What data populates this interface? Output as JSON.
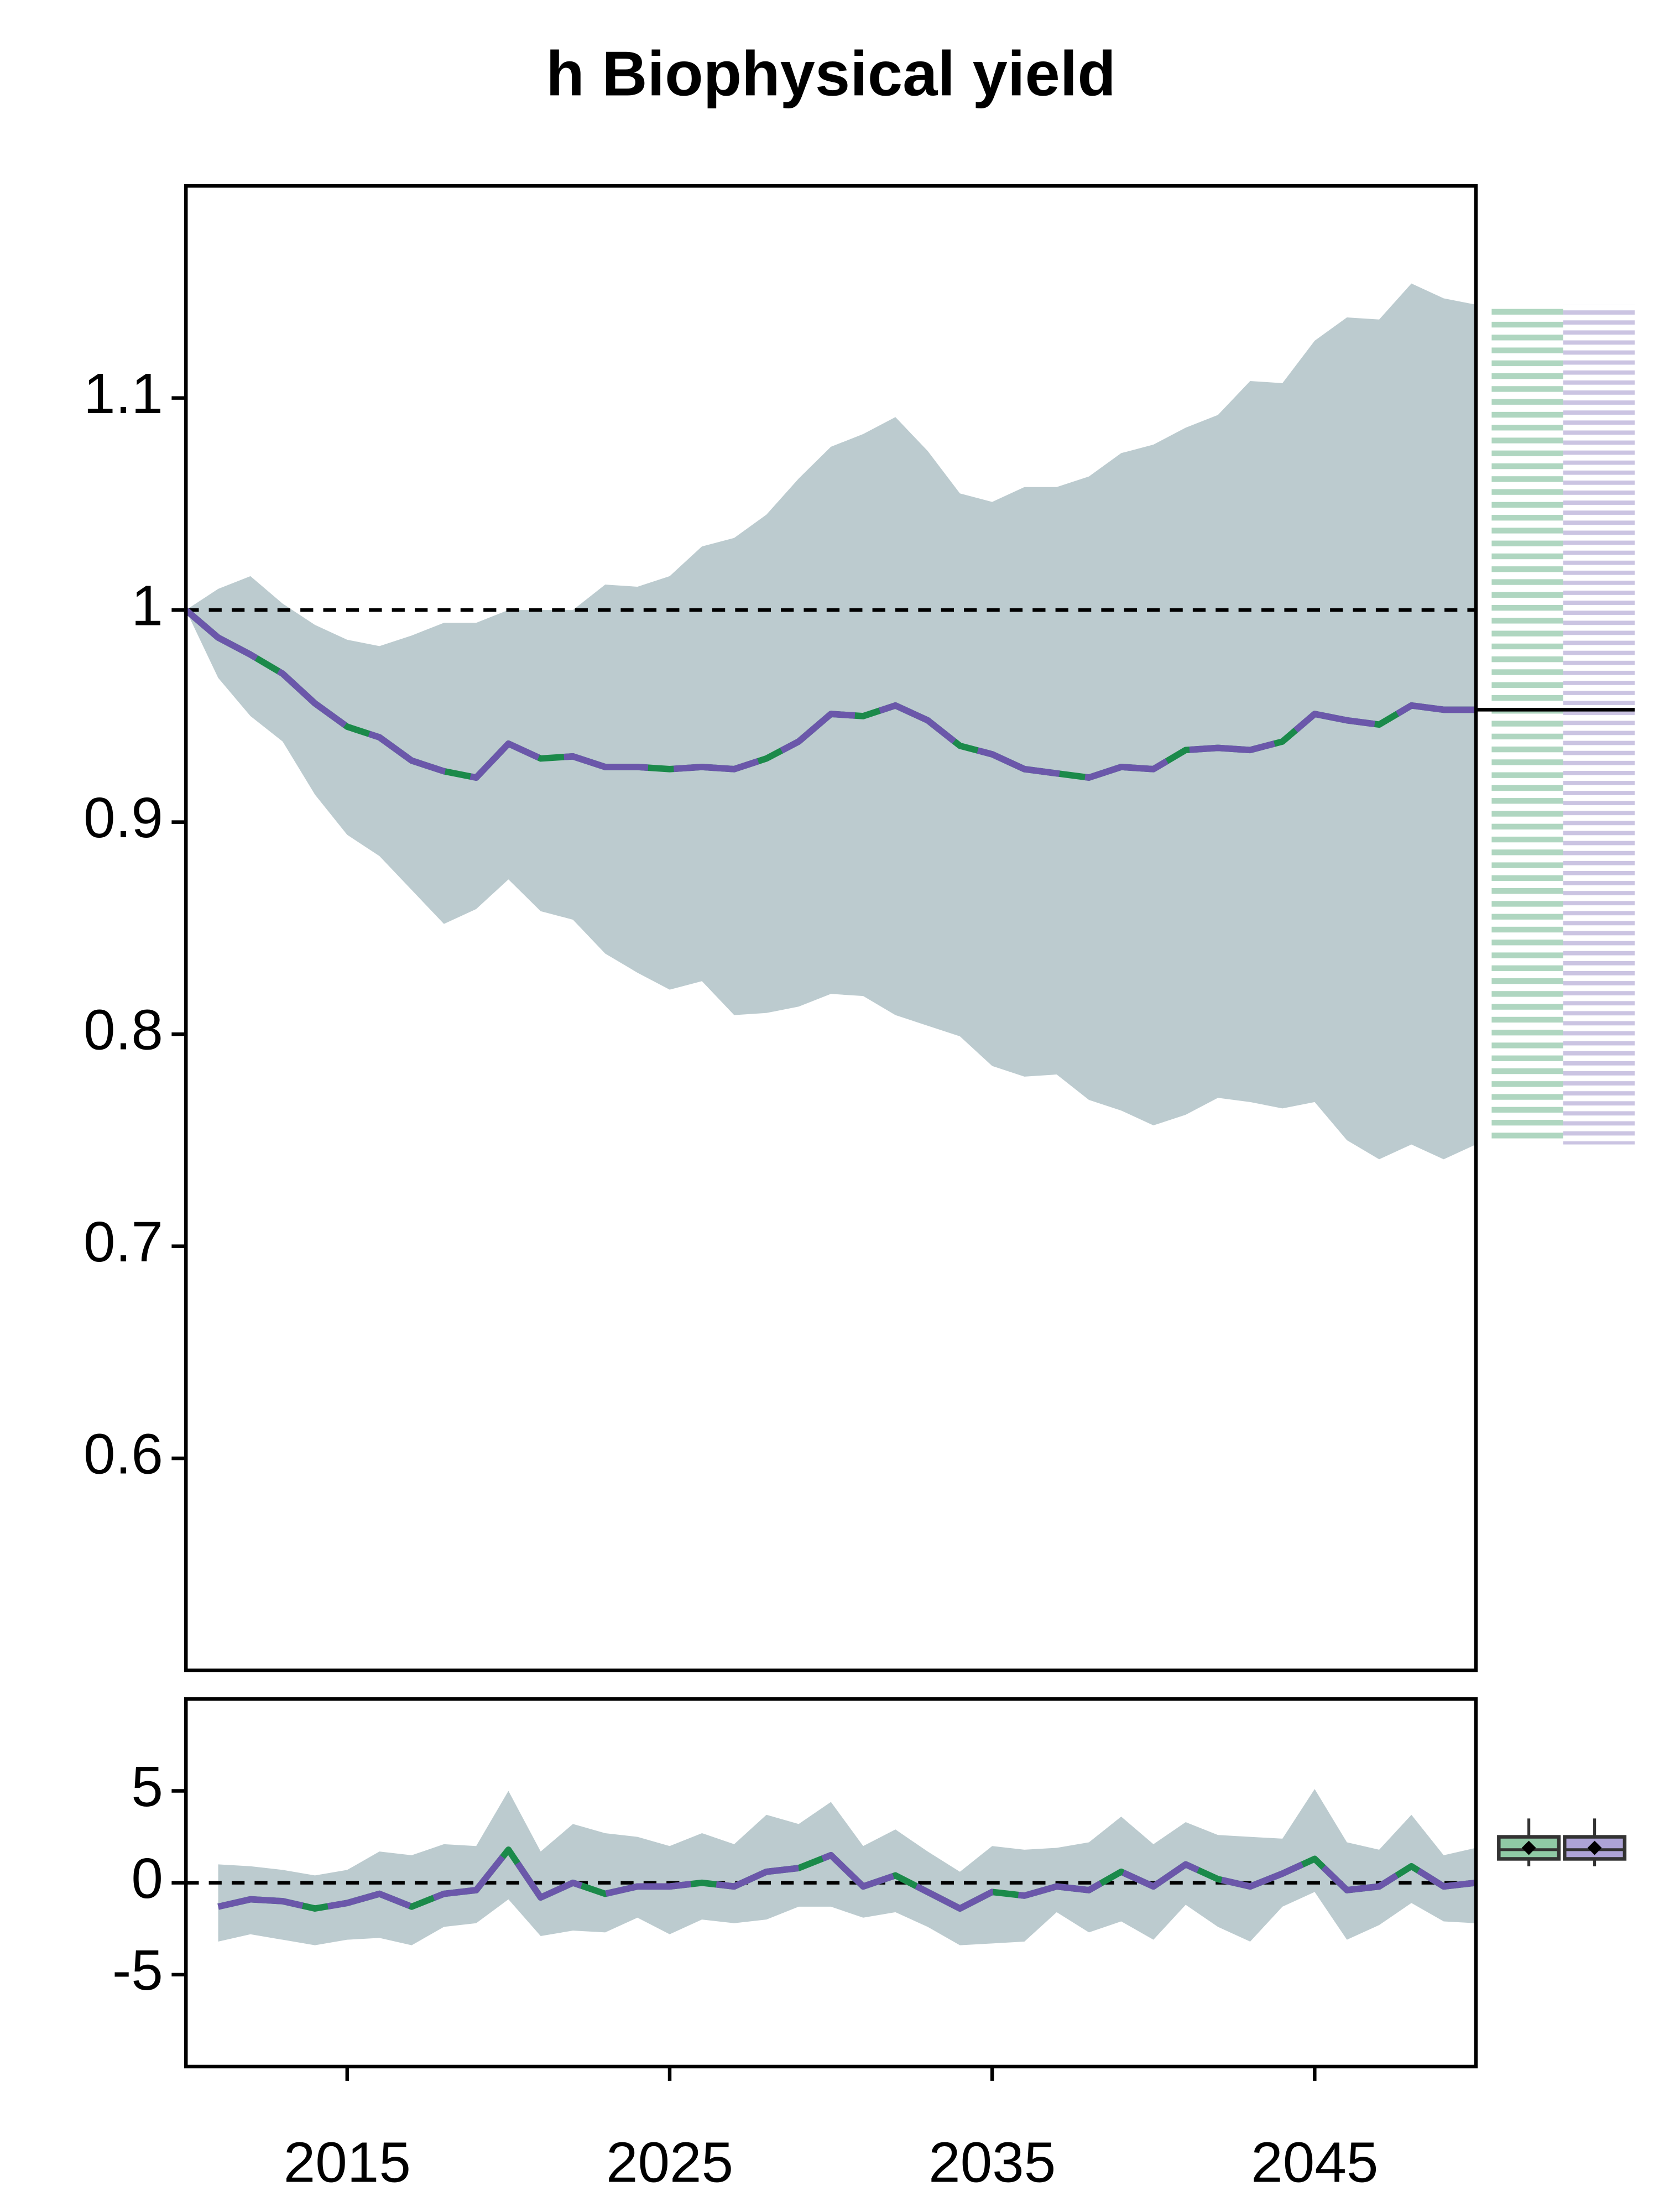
{
  "chart_data": [
    {
      "type": "line",
      "title": "h Biophysical yield",
      "x": [
        2010,
        2011,
        2012,
        2013,
        2014,
        2015,
        2016,
        2017,
        2018,
        2019,
        2020,
        2021,
        2022,
        2023,
        2024,
        2025,
        2026,
        2027,
        2028,
        2029,
        2030,
        2031,
        2032,
        2033,
        2034,
        2035,
        2036,
        2037,
        2038,
        2039,
        2040,
        2041,
        2042,
        2043,
        2044,
        2045,
        2046,
        2047,
        2048,
        2049,
        2050
      ],
      "series": [
        {
          "colors": [
            "#1b8a4a",
            "#6b57aa"
          ],
          "values": [
            1.0,
            0.987,
            0.979,
            0.97,
            0.956,
            0.945,
            0.94,
            0.929,
            0.924,
            0.921,
            0.937,
            0.93,
            0.931,
            0.926,
            0.926,
            0.925,
            0.926,
            0.925,
            0.93,
            0.938,
            0.951,
            0.95,
            0.955,
            0.948,
            0.936,
            0.932,
            0.925,
            0.923,
            0.921,
            0.926,
            0.925,
            0.934,
            0.935,
            0.934,
            0.938,
            0.951,
            0.948,
            0.946,
            0.955,
            0.953,
            0.953
          ]
        }
      ],
      "band": {
        "color": "#bccbcf",
        "upper": [
          1.0,
          1.01,
          1.016,
          1.003,
          0.993,
          0.986,
          0.983,
          0.988,
          0.994,
          0.994,
          1.0,
          1.0,
          1.0,
          1.012,
          1.011,
          1.016,
          1.03,
          1.034,
          1.045,
          1.062,
          1.077,
          1.083,
          1.091,
          1.075,
          1.055,
          1.051,
          1.058,
          1.058,
          1.063,
          1.074,
          1.078,
          1.086,
          1.092,
          1.108,
          1.107,
          1.127,
          1.138,
          1.137,
          1.154,
          1.147,
          1.144
        ],
        "lower": [
          1.0,
          0.968,
          0.95,
          0.938,
          0.913,
          0.894,
          0.884,
          0.868,
          0.852,
          0.859,
          0.873,
          0.858,
          0.854,
          0.838,
          0.829,
          0.821,
          0.825,
          0.809,
          0.81,
          0.813,
          0.819,
          0.818,
          0.809,
          0.804,
          0.799,
          0.785,
          0.78,
          0.781,
          0.769,
          0.764,
          0.757,
          0.762,
          0.77,
          0.768,
          0.765,
          0.768,
          0.75,
          0.741,
          0.748,
          0.741,
          0.748
        ]
      },
      "xlim": [
        2010,
        2050
      ],
      "ylim": [
        0.5,
        1.2
      ],
      "yticks": [
        0.6,
        0.7,
        0.8,
        0.9,
        1.0,
        1.1
      ],
      "reference_line": 1.0
    },
    {
      "type": "line",
      "x": [
        2011,
        2012,
        2013,
        2014,
        2015,
        2016,
        2017,
        2018,
        2019,
        2020,
        2021,
        2022,
        2023,
        2024,
        2025,
        2026,
        2027,
        2028,
        2029,
        2030,
        2031,
        2032,
        2033,
        2034,
        2035,
        2036,
        2037,
        2038,
        2039,
        2040,
        2041,
        2042,
        2043,
        2044,
        2045,
        2046,
        2047,
        2048,
        2049,
        2050
      ],
      "series": [
        {
          "colors": [
            "#1b8a4a",
            "#6b57aa"
          ],
          "values": [
            -1.3,
            -0.9,
            -1.0,
            -1.4,
            -1.1,
            -0.6,
            -1.3,
            -0.6,
            -0.4,
            1.8,
            -0.8,
            0,
            -0.6,
            -0.2,
            -0.2,
            0,
            -0.2,
            0.6,
            0.8,
            1.5,
            -0.2,
            0.4,
            -0.5,
            -1.4,
            -0.5,
            -0.7,
            -0.2,
            -0.4,
            0.6,
            -0.2,
            1.0,
            0.2,
            -0.2,
            0.5,
            1.3,
            -0.4,
            -0.2,
            0.9,
            -0.2,
            0
          ]
        }
      ],
      "band": {
        "color": "#bccbcf",
        "upper": [
          1.0,
          0.9,
          0.7,
          0.4,
          0.7,
          1.7,
          1.5,
          2.1,
          2.0,
          5.0,
          1.7,
          3.2,
          2.7,
          2.5,
          2.0,
          2.7,
          2.1,
          3.7,
          3.2,
          4.4,
          2.0,
          2.9,
          1.7,
          0.6,
          2.0,
          1.8,
          1.9,
          2.2,
          3.6,
          2.1,
          3.3,
          2.6,
          2.5,
          2.4,
          5.1,
          2.2,
          1.8,
          3.7,
          1.5,
          1.9
        ],
        "lower": [
          -3.2,
          -2.8,
          -3.1,
          -3.4,
          -3.1,
          -3.0,
          -3.4,
          -2.4,
          -2.2,
          -0.9,
          -2.9,
          -2.6,
          -2.7,
          -1.9,
          -2.8,
          -2.0,
          -2.2,
          -2.0,
          -1.3,
          -1.3,
          -1.9,
          -1.6,
          -2.4,
          -3.4,
          -3.3,
          -3.2,
          -1.6,
          -2.7,
          -2.1,
          -3.1,
          -1.2,
          -2.4,
          -3.2,
          -1.3,
          -0.5,
          -3.1,
          -2.3,
          -1.1,
          -2.1,
          -2.2
        ]
      },
      "xlim": [
        2010,
        2050
      ],
      "ylim": [
        -10,
        10
      ],
      "yticks": [
        -5,
        0,
        5
      ],
      "xticks": [
        2015,
        2025,
        2035,
        2045
      ],
      "reference_line": 0,
      "boxes": [
        {
          "color": "#8fc9a5",
          "whisker_low": 0.9,
          "q1": 1.3,
          "median": 1.8,
          "q3": 2.5,
          "whisker_high": 3.5,
          "mean": 1.9
        },
        {
          "color": "#ada3d6",
          "whisker_low": 0.9,
          "q1": 1.3,
          "median": 1.8,
          "q3": 2.5,
          "whisker_high": 3.5,
          "mean": 1.9
        }
      ]
    }
  ]
}
